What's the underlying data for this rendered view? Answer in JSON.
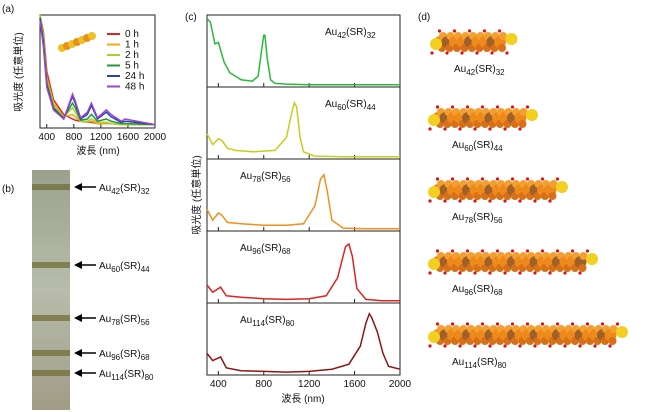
{
  "panel_labels": [
    "(a)",
    "(b)",
    "(c)",
    "(d)"
  ],
  "chart_data": [
    {
      "type": "line",
      "xlabel": "波長 (nm)",
      "ylabel": "吸光度 (任意単位)",
      "xlim": [
        300,
        2000
      ],
      "xticks": [
        400,
        800,
        1200,
        1600,
        2000
      ],
      "ylim": [
        0,
        1
      ],
      "x": [
        300,
        350,
        400,
        500,
        650,
        780,
        820,
        900,
        1000,
        1060,
        1150,
        1280,
        1350,
        1500,
        1560,
        2000
      ],
      "series": [
        {
          "name": "0 h",
          "color": "#e8231e",
          "values": [
            1,
            0.85,
            0.5,
            0.25,
            0.12,
            0.08,
            0.07,
            0.06,
            0.05,
            0.05,
            0.04,
            0.04,
            0.04,
            0.03,
            0.03,
            0.03
          ]
        },
        {
          "name": "1 h",
          "color": "#f0a818",
          "values": [
            1,
            0.82,
            0.45,
            0.22,
            0.1,
            0.12,
            0.1,
            0.06,
            0.05,
            0.06,
            0.04,
            0.04,
            0.04,
            0.03,
            0.03,
            0.03
          ]
        },
        {
          "name": "2 h",
          "color": "#a8d030",
          "values": [
            1,
            0.8,
            0.42,
            0.2,
            0.1,
            0.18,
            0.14,
            0.06,
            0.06,
            0.08,
            0.05,
            0.05,
            0.04,
            0.03,
            0.03,
            0.03
          ]
        },
        {
          "name": "5 h",
          "color": "#1f9a3a",
          "values": [
            0.98,
            0.78,
            0.4,
            0.18,
            0.09,
            0.22,
            0.18,
            0.07,
            0.08,
            0.12,
            0.06,
            0.08,
            0.06,
            0.04,
            0.04,
            0.03
          ]
        },
        {
          "name": "24 h",
          "color": "#2a3fb8",
          "values": [
            0.97,
            0.75,
            0.38,
            0.17,
            0.08,
            0.28,
            0.22,
            0.08,
            0.12,
            0.2,
            0.08,
            0.14,
            0.1,
            0.05,
            0.06,
            0.03
          ]
        },
        {
          "name": "48 h",
          "color": "#9b45c8",
          "values": [
            0.95,
            0.72,
            0.36,
            0.16,
            0.08,
            0.3,
            0.24,
            0.09,
            0.14,
            0.22,
            0.09,
            0.16,
            0.12,
            0.06,
            0.08,
            0.03
          ]
        }
      ]
    },
    {
      "type": "spectrum",
      "label": {
        "metal": "Au",
        "n": "42",
        "ligand": "(SR)",
        "m": "32"
      },
      "xlim": [
        300,
        2000
      ],
      "xticks": [
        400,
        800,
        1200,
        1600,
        2000
      ],
      "ylim": [
        0,
        1
      ],
      "x": [
        300,
        330,
        370,
        400,
        450,
        500,
        600,
        700,
        750,
        780,
        800,
        810,
        830,
        860,
        900,
        1000,
        1200,
        1500,
        1800,
        2000
      ],
      "series": [
        {
          "color": "#2cb83c",
          "values": [
            0.95,
            0.9,
            0.6,
            0.62,
            0.35,
            0.2,
            0.1,
            0.08,
            0.15,
            0.5,
            0.72,
            0.72,
            0.4,
            0.1,
            0.05,
            0.04,
            0.03,
            0.03,
            0.03,
            0.03
          ]
        }
      ]
    },
    {
      "type": "spectrum",
      "label": {
        "metal": "Au",
        "n": "60",
        "ligand": "(SR)",
        "m": "44"
      },
      "xlim": [
        300,
        2000
      ],
      "xticks": [
        400,
        800,
        1200,
        1600,
        2000
      ],
      "ylim": [
        0,
        1
      ],
      "x": [
        300,
        350,
        400,
        430,
        480,
        550,
        700,
        900,
        1000,
        1040,
        1070,
        1090,
        1120,
        1150,
        1250,
        1500,
        2000
      ],
      "series": [
        {
          "color": "#c8cc1c",
          "values": [
            0.35,
            0.2,
            0.28,
            0.26,
            0.15,
            0.12,
            0.1,
            0.12,
            0.3,
            0.6,
            0.78,
            0.72,
            0.3,
            0.1,
            0.04,
            0.03,
            0.03
          ]
        }
      ]
    },
    {
      "type": "spectrum",
      "label": {
        "metal": "Au",
        "n": "78",
        "ligand": "(SR)",
        "m": "56"
      },
      "ylabel": "吸光度 (任意単位)",
      "xlim": [
        300,
        2000
      ],
      "xticks": [
        400,
        800,
        1200,
        1600,
        2000
      ],
      "ylim": [
        0,
        1
      ],
      "x": [
        300,
        350,
        400,
        430,
        480,
        600,
        800,
        1000,
        1150,
        1250,
        1300,
        1330,
        1360,
        1400,
        1500,
        1700,
        2000
      ],
      "series": [
        {
          "color": "#f0901e",
          "values": [
            0.3,
            0.15,
            0.25,
            0.22,
            0.12,
            0.1,
            0.08,
            0.08,
            0.1,
            0.35,
            0.72,
            0.78,
            0.55,
            0.15,
            0.04,
            0.03,
            0.03
          ]
        }
      ]
    },
    {
      "type": "spectrum",
      "label": {
        "metal": "Au",
        "n": "96",
        "ligand": "(SR)",
        "m": "68"
      },
      "xlim": [
        300,
        2000
      ],
      "xticks": [
        400,
        800,
        1200,
        1600,
        2000
      ],
      "ylim": [
        0,
        1
      ],
      "x": [
        300,
        350,
        420,
        470,
        600,
        800,
        1000,
        1200,
        1350,
        1450,
        1520,
        1550,
        1580,
        1620,
        1700,
        1850,
        2000
      ],
      "series": [
        {
          "color": "#e02222",
          "values": [
            0.25,
            0.15,
            0.22,
            0.1,
            0.08,
            0.06,
            0.05,
            0.06,
            0.1,
            0.35,
            0.78,
            0.82,
            0.65,
            0.2,
            0.05,
            0.03,
            0.03
          ]
        }
      ]
    },
    {
      "type": "spectrum",
      "label": {
        "metal": "Au",
        "n": "114",
        "ligand": "(SR)",
        "m": "80"
      },
      "xlabel": "波長 (nm)",
      "xlim": [
        300,
        2000
      ],
      "xticks": [
        400,
        800,
        1200,
        1600,
        2000
      ],
      "ylim": [
        0,
        1
      ],
      "x": [
        300,
        350,
        420,
        470,
        600,
        800,
        1000,
        1200,
        1400,
        1550,
        1650,
        1700,
        1730,
        1750,
        1800,
        1850,
        1900,
        2000
      ],
      "series": [
        {
          "color": "#8e1414",
          "values": [
            0.3,
            0.2,
            0.25,
            0.1,
            0.06,
            0.05,
            0.04,
            0.05,
            0.08,
            0.15,
            0.4,
            0.72,
            0.85,
            0.8,
            0.6,
            0.3,
            0.12,
            0.08
          ]
        }
      ]
    }
  ]
}
